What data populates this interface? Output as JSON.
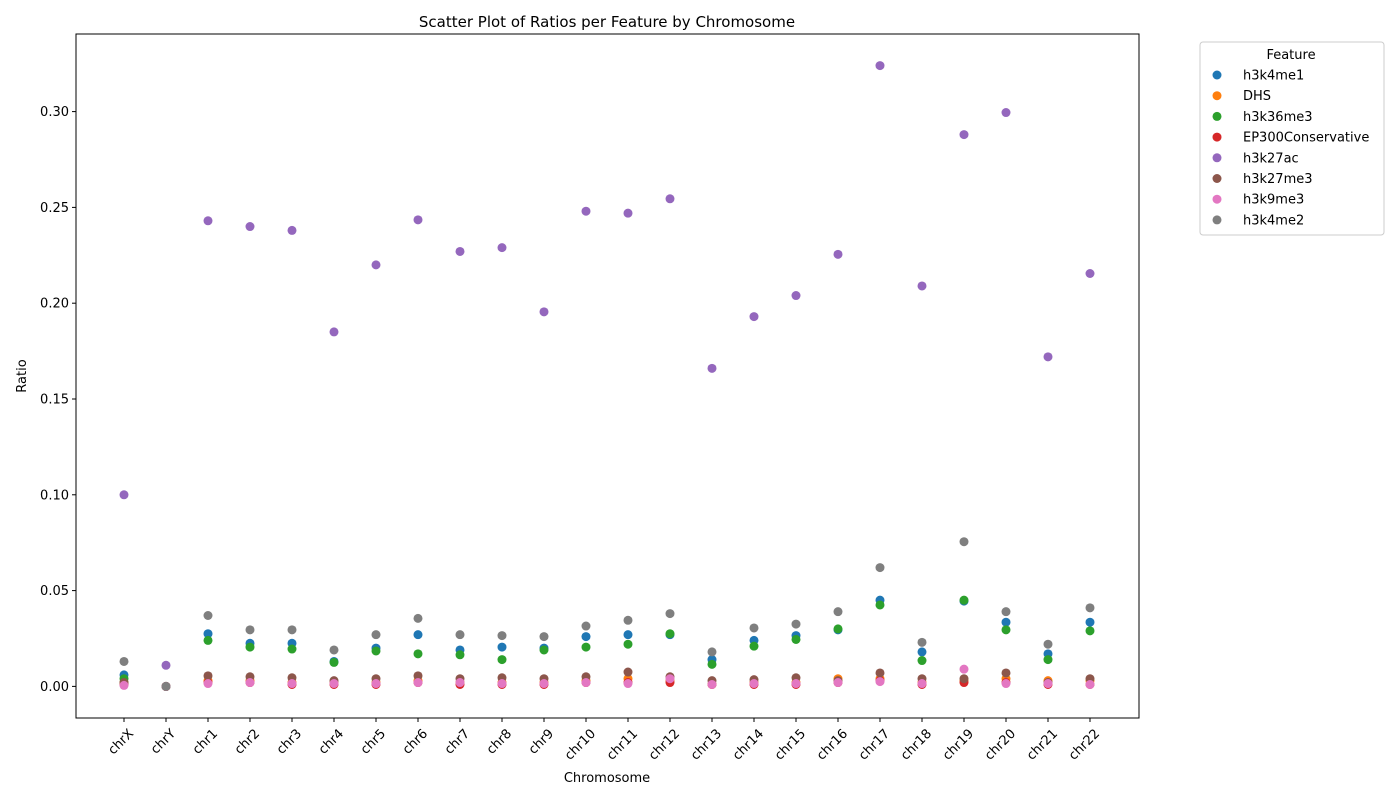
{
  "chart_data": {
    "type": "scatter",
    "title": "Scatter Plot of Ratios per Feature by Chromosome",
    "xlabel": "Chromosome",
    "ylabel": "Ratio",
    "legend_title": "Feature",
    "legend_position": "outside-right-top",
    "grid": false,
    "ylim": [
      -0.0165,
      0.3405
    ],
    "yticks": [
      0.0,
      0.05,
      0.1,
      0.15,
      0.2,
      0.25,
      0.3
    ],
    "ytick_labels": [
      "0.00",
      "0.05",
      "0.10",
      "0.15",
      "0.20",
      "0.25",
      "0.30"
    ],
    "categories": [
      "chrX",
      "chrY",
      "chr1",
      "chr2",
      "chr3",
      "chr4",
      "chr5",
      "chr6",
      "chr7",
      "chr8",
      "chr9",
      "chr10",
      "chr11",
      "chr12",
      "chr13",
      "chr14",
      "chr15",
      "chr16",
      "chr17",
      "chr18",
      "chr19",
      "chr20",
      "chr21",
      "chr22"
    ],
    "series": [
      {
        "name": "h3k4me1",
        "color": "#1f77b4",
        "values": [
          0.006,
          0.0,
          0.0275,
          0.0225,
          0.0225,
          0.013,
          0.02,
          0.027,
          0.019,
          0.0205,
          0.02,
          0.026,
          0.027,
          0.027,
          0.014,
          0.024,
          0.0265,
          0.0295,
          0.045,
          0.018,
          0.0445,
          0.0335,
          0.017,
          0.0335
        ]
      },
      {
        "name": "DHS",
        "color": "#ff7f0e",
        "values": [
          0.002,
          0.0,
          0.003,
          0.003,
          0.002,
          0.002,
          0.002,
          0.003,
          0.002,
          0.002,
          0.002,
          0.003,
          0.004,
          0.003,
          0.001,
          0.002,
          0.002,
          0.004,
          0.004,
          0.002,
          0.003,
          0.004,
          0.003,
          0.003
        ]
      },
      {
        "name": "h3k36me3",
        "color": "#2ca02c",
        "values": [
          0.004,
          0.0,
          0.024,
          0.0205,
          0.0195,
          0.0125,
          0.0185,
          0.017,
          0.0165,
          0.014,
          0.019,
          0.0205,
          0.022,
          0.0275,
          0.0115,
          0.021,
          0.0245,
          0.03,
          0.0425,
          0.0135,
          0.045,
          0.0295,
          0.014,
          0.029
        ]
      },
      {
        "name": "EP300Conservative",
        "color": "#d62728",
        "values": [
          0.001,
          0.0,
          0.002,
          0.002,
          0.001,
          0.001,
          0.001,
          0.002,
          0.001,
          0.001,
          0.001,
          0.002,
          0.002,
          0.002,
          0.001,
          0.001,
          0.001,
          0.002,
          0.003,
          0.001,
          0.002,
          0.002,
          0.001,
          0.001
        ]
      },
      {
        "name": "h3k27ac",
        "color": "#9467bd",
        "values": [
          0.1,
          0.011,
          0.243,
          0.24,
          0.238,
          0.185,
          0.22,
          0.2435,
          0.227,
          0.229,
          0.1955,
          0.248,
          0.247,
          0.2545,
          0.166,
          0.193,
          0.204,
          0.2255,
          0.324,
          0.209,
          0.288,
          0.2995,
          0.172,
          0.2155
        ]
      },
      {
        "name": "h3k27me3",
        "color": "#8c564b",
        "values": [
          0.002,
          0.0,
          0.0055,
          0.005,
          0.0045,
          0.003,
          0.004,
          0.0055,
          0.004,
          0.0045,
          0.004,
          0.005,
          0.0075,
          0.005,
          0.003,
          0.0035,
          0.0045,
          0.003,
          0.007,
          0.004,
          0.004,
          0.007,
          0.002,
          0.004
        ]
      },
      {
        "name": "h3k9me3",
        "color": "#e377c2",
        "values": [
          0.0005,
          0.0,
          0.0015,
          0.002,
          0.0015,
          0.0015,
          0.0015,
          0.002,
          0.002,
          0.0015,
          0.0015,
          0.002,
          0.0015,
          0.004,
          0.001,
          0.0015,
          0.0015,
          0.002,
          0.0025,
          0.0015,
          0.009,
          0.0015,
          0.0015,
          0.001
        ]
      },
      {
        "name": "h3k4me2",
        "color": "#7f7f7f",
        "values": [
          0.013,
          0.0,
          0.037,
          0.0295,
          0.0295,
          0.019,
          0.027,
          0.0355,
          0.027,
          0.0265,
          0.026,
          0.0315,
          0.0345,
          0.038,
          0.018,
          0.0305,
          0.0325,
          0.039,
          0.062,
          0.023,
          0.0755,
          0.039,
          0.022,
          0.041
        ]
      }
    ]
  }
}
